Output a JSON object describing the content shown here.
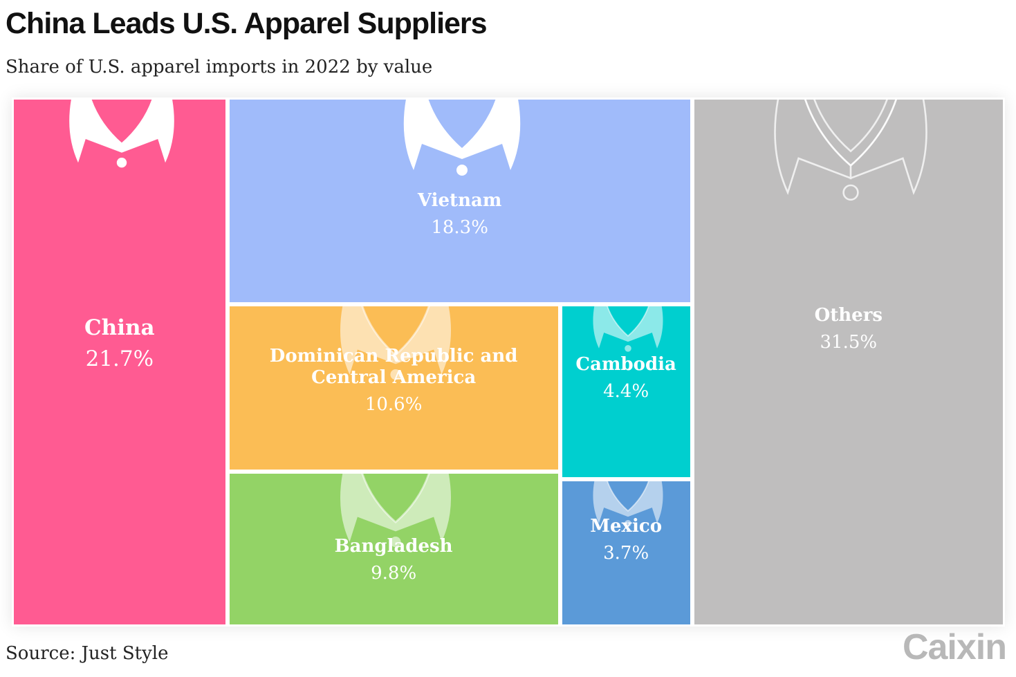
{
  "title": "China Leads U.S. Apparel Suppliers",
  "subtitle": "Share of U.S. apparel imports in 2022 by value",
  "source": "Source: Just Style",
  "brand": "Caixin",
  "chart_data": {
    "type": "treemap",
    "unit": "%",
    "items": [
      {
        "name": "China",
        "value": 21.7,
        "label": "21.7%",
        "color": "#ff5b92"
      },
      {
        "name": "Vietnam",
        "value": 18.3,
        "label": "18.3%",
        "color": "#a0bbfa"
      },
      {
        "name": "Dominican Republic and Central America",
        "value": 10.6,
        "label": "10.6%",
        "color": "#fbbd55"
      },
      {
        "name": "Cambodia",
        "value": 4.4,
        "label": "4.4%",
        "color": "#00cfcf"
      },
      {
        "name": "Bangladesh",
        "value": 9.8,
        "label": "9.8%",
        "color": "#93d366"
      },
      {
        "name": "Mexico",
        "value": 3.7,
        "label": "3.7%",
        "color": "#5b9ad8"
      },
      {
        "name": "Others",
        "value": 31.5,
        "label": "31.5%",
        "color": "#bfbebe"
      }
    ],
    "icons": [
      "collar-icon"
    ]
  }
}
